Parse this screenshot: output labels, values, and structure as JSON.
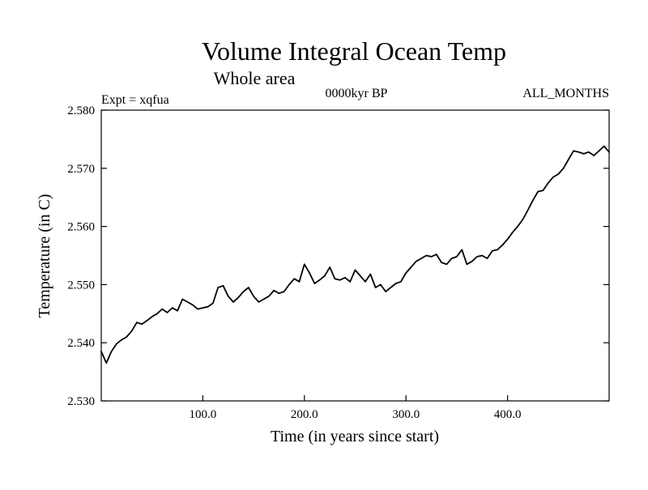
{
  "chart_data": {
    "type": "line",
    "title": "Volume Integral Ocean Temp",
    "subtitle": "Whole area",
    "experiment_label": "Expt = xqfua",
    "period_label": "0000kyr BP",
    "months_label": "ALL_MONTHS",
    "xlabel": "Time (in years since start)",
    "ylabel": "Temperature (in C)",
    "xlim": [
      0,
      500
    ],
    "ylim": [
      2.53,
      2.58
    ],
    "x_ticks": [
      100,
      200,
      300,
      400
    ],
    "x_tick_labels": [
      "100.0",
      "200.0",
      "300.0",
      "400.0"
    ],
    "y_ticks": [
      2.53,
      2.54,
      2.55,
      2.56,
      2.57,
      2.58
    ],
    "y_tick_labels": [
      "2.530",
      "2.540",
      "2.550",
      "2.560",
      "2.570",
      "2.580"
    ],
    "grid": false,
    "series": [
      {
        "name": "Volume Integral Ocean Temp",
        "x": [
          0,
          5,
          10,
          15,
          20,
          25,
          30,
          35,
          40,
          45,
          50,
          55,
          60,
          65,
          70,
          75,
          80,
          85,
          90,
          95,
          100,
          105,
          110,
          115,
          120,
          125,
          130,
          135,
          140,
          145,
          150,
          155,
          160,
          165,
          170,
          175,
          180,
          185,
          190,
          195,
          200,
          205,
          210,
          215,
          220,
          225,
          230,
          235,
          240,
          245,
          250,
          255,
          260,
          265,
          270,
          275,
          280,
          285,
          290,
          295,
          300,
          305,
          310,
          315,
          320,
          325,
          330,
          335,
          340,
          345,
          350,
          355,
          360,
          365,
          370,
          375,
          380,
          385,
          390,
          395,
          400,
          405,
          410,
          415,
          420,
          425,
          430,
          435,
          440,
          445,
          450,
          455,
          460,
          465,
          470,
          475,
          480,
          485,
          490,
          495,
          500
        ],
        "values": [
          2.5385,
          2.5365,
          2.5385,
          2.5398,
          2.5405,
          2.541,
          2.542,
          2.5435,
          2.5432,
          2.5438,
          2.5445,
          2.545,
          2.5458,
          2.5452,
          2.546,
          2.5455,
          2.5475,
          2.547,
          2.5465,
          2.5458,
          2.546,
          2.5462,
          2.5468,
          2.5495,
          2.5498,
          2.548,
          2.547,
          2.5478,
          2.5488,
          2.5495,
          2.548,
          2.547,
          2.5475,
          2.548,
          2.549,
          2.5485,
          2.5488,
          2.55,
          2.551,
          2.5505,
          2.5535,
          2.552,
          2.5502,
          2.5508,
          2.5515,
          2.553,
          2.551,
          2.5508,
          2.5512,
          2.5505,
          2.5525,
          2.5515,
          2.5505,
          2.5518,
          2.5495,
          2.55,
          2.5488,
          2.5495,
          2.5502,
          2.5505,
          2.552,
          2.553,
          2.554,
          2.5545,
          2.555,
          2.5548,
          2.5552,
          2.5538,
          2.5535,
          2.5545,
          2.5548,
          2.556,
          2.5535,
          2.554,
          2.5548,
          2.555,
          2.5545,
          2.5558,
          2.556,
          2.5568,
          2.5578,
          2.559,
          2.56,
          2.5612,
          2.5628,
          2.5645,
          2.566,
          2.5662,
          2.5675,
          2.5685,
          2.569,
          2.57,
          2.5715,
          2.573,
          2.5728,
          2.5725,
          2.5728,
          2.5722,
          2.573,
          2.5738,
          2.5728
        ]
      }
    ]
  }
}
